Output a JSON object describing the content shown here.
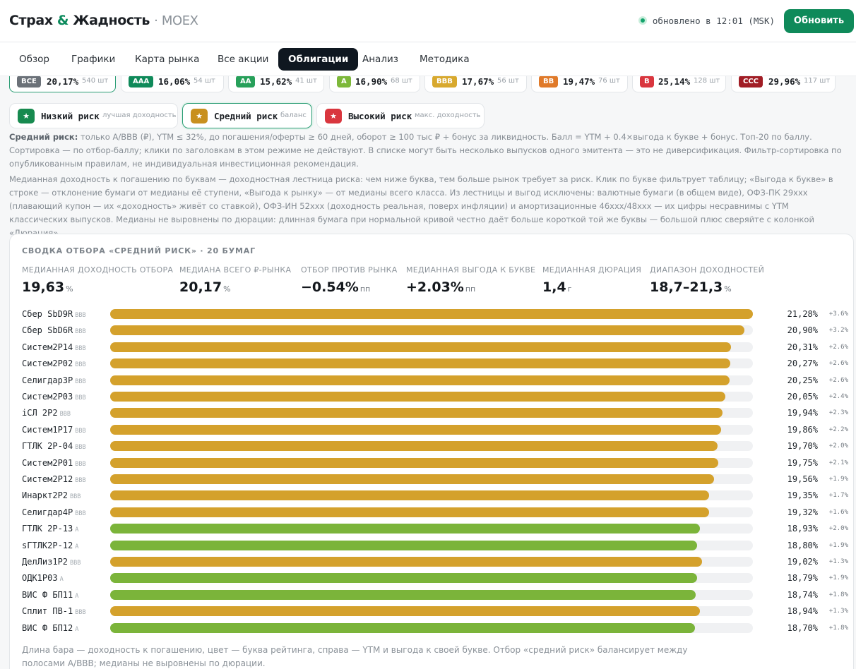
{
  "header": {
    "brand_part1": "Страх",
    "brand_amp": "&",
    "brand_part2": "Жадность",
    "brand_sub": "· MOEX",
    "status_text": "обновлено в 12:01 (MSK)",
    "refresh_label": "Обновить"
  },
  "tabs": [
    {
      "label": "Обзор"
    },
    {
      "label": "Графики"
    },
    {
      "label": "Карта рынка"
    },
    {
      "label": "Все акции"
    },
    {
      "label": "Облигации",
      "active": true
    },
    {
      "label": "Анализ"
    },
    {
      "label": "Методика"
    }
  ],
  "rating_chips": [
    {
      "badge": "ВСЕ",
      "value": "20,17%",
      "count": "540 шт",
      "color": "#6b7178",
      "selected": true
    },
    {
      "badge": "AAA",
      "value": "16,06%",
      "count": "54 шт",
      "color": "#0f8a5a"
    },
    {
      "badge": "AA",
      "value": "15,62%",
      "count": "41 шт",
      "color": "#27a05a"
    },
    {
      "badge": "A",
      "value": "16,90%",
      "count": "68 шт",
      "color": "#7db83a"
    },
    {
      "badge": "BBB",
      "value": "17,67%",
      "count": "56 шт",
      "color": "#d8a92e"
    },
    {
      "badge": "BB",
      "value": "19,47%",
      "count": "76 шт",
      "color": "#e07a2a"
    },
    {
      "badge": "B",
      "value": "25,14%",
      "count": "128 шт",
      "color": "#d9363e"
    },
    {
      "badge": "CCC",
      "value": "29,96%",
      "count": "117 шт",
      "color": "#a11d25"
    }
  ],
  "risk_filters": [
    {
      "icon": "★",
      "label": "Низкий риск",
      "sub": "лучшая доходность",
      "color": "#178a4f"
    },
    {
      "icon": "★",
      "label": "Средний риск",
      "sub": "баланс",
      "color": "#c8901e",
      "selected": true
    },
    {
      "icon": "★",
      "label": "Высокий риск",
      "sub": "макс. доходность",
      "color": "#d9363e"
    }
  ],
  "explain": {
    "strong": "Средний риск:",
    "text": " только A/BBB (₽), YTM ≤ 32%, до погашения/оферты ≥ 60 дней, оборот ≥ 100 тыс ₽ + бонус за ликвидность. Балл = YTM + 0.4×выгода к букве + бонус. Топ-20 по баллу. Сортировка — по отбор-баллу; клики по заголовкам в этом режиме не действуют. В списке могут быть несколько выпусков одного эмитента — это не диверсификация. Фильтр-сортировка по опубликованным правилам, не индивидуальная инвестиционная рекомендация.",
    "ladder": "Медианная доходность к погашению по буквам — доходностная лестница риска: чем ниже буква, тем больше рынок требует за риск. Клик по букве фильтрует таблицу; «Выгода к букве» в строке — отклонение бумаги от медианы её ступени, «Выгода к рынку» — от медианы всего класса. Из лестницы и выгод исключены: валютные бумаги (в общем виде), ОФЗ-ПК 29xxx (плавающий купон — их «доходность» живёт со ставкой), ОФЗ-ИН 52xxx (доходность реальная, поверх инфляции) и амортизационные 46xxx/48xxx — их цифры несравнимы с YTM классических выпусков. Медианы не выровнены по дюрации: длинная бумага при нормальной кривой честно даёт больше короткой той же буквы — большой плюс сверяйте с колонкой «Дюрация»."
  },
  "summary": {
    "title": "СВОДКА ОТБОРА «СРЕДНИЙ РИСК» · 20 БУМАГ",
    "stats": [
      {
        "label": "МЕДИАННАЯ ДОХОДНОСТЬ ОТБОРА",
        "value": "19,63",
        "unit": "%"
      },
      {
        "label": "МЕДИАНА ВСЕГО ₽-РЫНКА",
        "value": "20,17",
        "unit": "%"
      },
      {
        "label": "ОТБОР ПРОТИВ РЫНКА",
        "value": "−0.54%",
        "unit": "пп"
      },
      {
        "label": "МЕДИАННАЯ ВЫГОДА К БУКВЕ",
        "value": "+2.03%",
        "unit": "пп"
      },
      {
        "label": "МЕДИАННАЯ ДЮРАЦИЯ",
        "value": "1,4",
        "unit": "г"
      },
      {
        "label": "ДИАПАЗОН ДОХОДНОСТЕЙ",
        "value": "18,7–21,3",
        "unit": "%"
      }
    ],
    "colors": {
      "BBB": "#d4a12c",
      "A": "#7bb43a"
    },
    "bonds": [
      {
        "name": "Сбер SbD9R",
        "rating": "BBB",
        "ytm": "21,28%",
        "delta": "+3.6%",
        "y": 21.28
      },
      {
        "name": "Сбер SbD6R",
        "rating": "BBB",
        "ytm": "20,90%",
        "delta": "+3.2%",
        "y": 20.9
      },
      {
        "name": "Систем2Р14",
        "rating": "BBB",
        "ytm": "20,31%",
        "delta": "+2.6%",
        "y": 20.31
      },
      {
        "name": "Систем2Р02",
        "rating": "BBB",
        "ytm": "20,27%",
        "delta": "+2.6%",
        "y": 20.27
      },
      {
        "name": "Селигдар3Р",
        "rating": "BBB",
        "ytm": "20,25%",
        "delta": "+2.6%",
        "y": 20.25
      },
      {
        "name": "Систем2Р03",
        "rating": "BBB",
        "ytm": "20,05%",
        "delta": "+2.4%",
        "y": 20.05
      },
      {
        "name": "iСЛ 2Р2",
        "rating": "BBB",
        "ytm": "19,94%",
        "delta": "+2.3%",
        "y": 19.94
      },
      {
        "name": "Систем1Р17",
        "rating": "BBB",
        "ytm": "19,86%",
        "delta": "+2.2%",
        "y": 19.86
      },
      {
        "name": "ГТЛК 2Р-04",
        "rating": "BBB",
        "ytm": "19,70%",
        "delta": "+2.0%",
        "y": 19.7
      },
      {
        "name": "Систем2Р01",
        "rating": "BBB",
        "ytm": "19,75%",
        "delta": "+2.1%",
        "y": 19.75
      },
      {
        "name": "Систем2Р12",
        "rating": "BBB",
        "ytm": "19,56%",
        "delta": "+1.9%",
        "y": 19.56
      },
      {
        "name": "Инаркт2Р2",
        "rating": "BBB",
        "ytm": "19,35%",
        "delta": "+1.7%",
        "y": 19.35
      },
      {
        "name": "Селигдар4Р",
        "rating": "BBB",
        "ytm": "19,32%",
        "delta": "+1.6%",
        "y": 19.32
      },
      {
        "name": "ГТЛК 2Р-13",
        "rating": "A",
        "ytm": "18,93%",
        "delta": "+2.0%",
        "y": 18.93
      },
      {
        "name": "sГТЛК2Р-12",
        "rating": "A",
        "ytm": "18,80%",
        "delta": "+1.9%",
        "y": 18.8
      },
      {
        "name": "ДелЛиз1Р2",
        "rating": "BBB",
        "ytm": "19,02%",
        "delta": "+1.3%",
        "y": 19.02
      },
      {
        "name": "ОДК1Р03",
        "rating": "A",
        "ytm": "18,79%",
        "delta": "+1.9%",
        "y": 18.79
      },
      {
        "name": "ВИС Ф БП11",
        "rating": "A",
        "ytm": "18,74%",
        "delta": "+1.8%",
        "y": 18.74
      },
      {
        "name": "Сплит ПВ-1",
        "rating": "BBB",
        "ytm": "18,94%",
        "delta": "+1.3%",
        "y": 18.94
      },
      {
        "name": "ВИС Ф БП12",
        "rating": "A",
        "ytm": "18,70%",
        "delta": "+1.8%",
        "y": 18.7
      }
    ],
    "footnote": "Длина бара — доходность к погашению, цвет — буква рейтинга, справа — YTM и выгода к своей букве. Отбор «средний риск» балансирует между полосами A/BBB; медианы не выровнены по дюрации."
  }
}
